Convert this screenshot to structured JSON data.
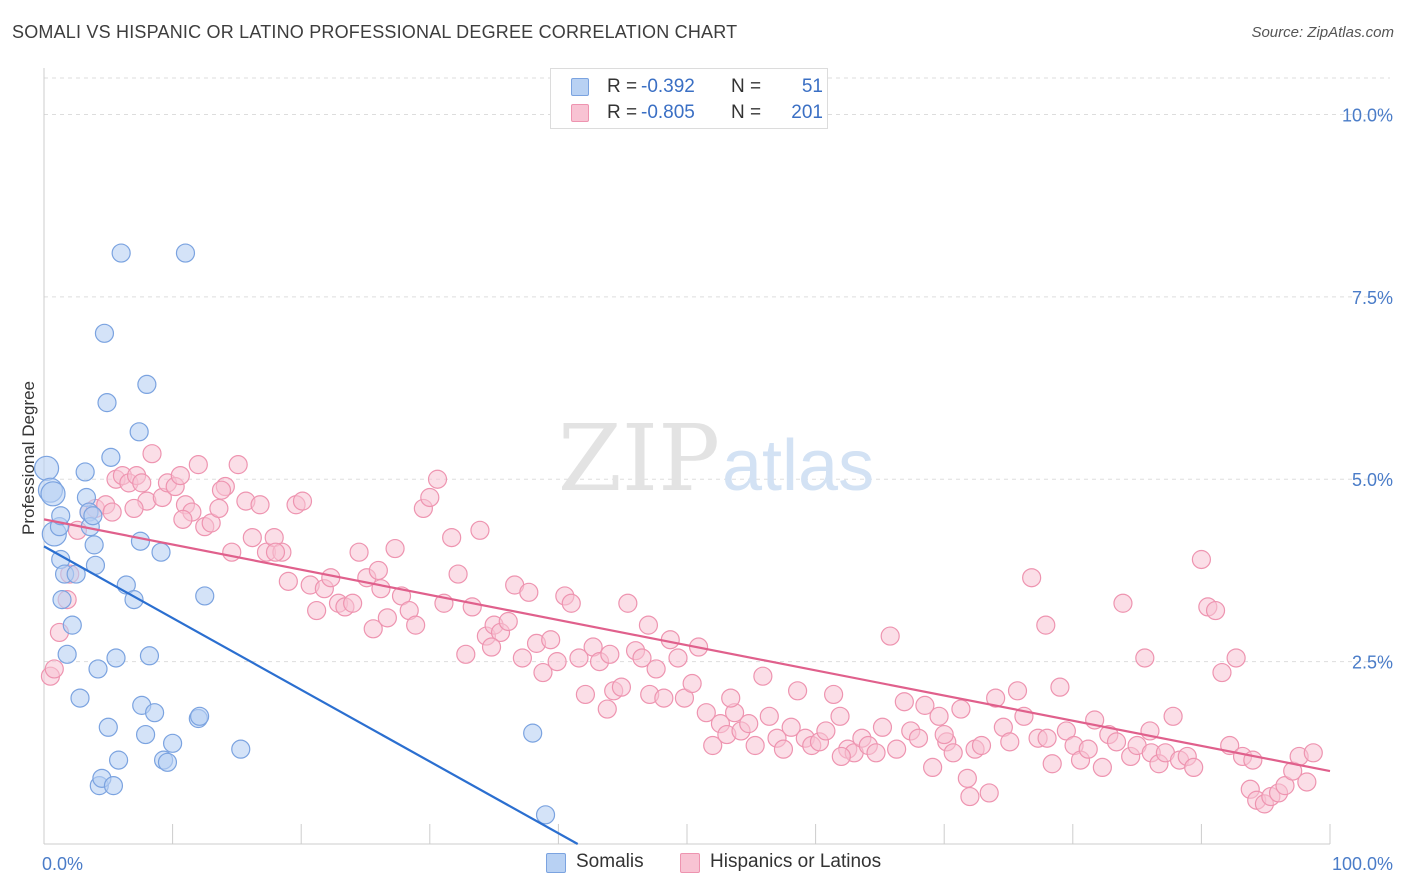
{
  "header": {
    "title": "SOMALI VS HISPANIC OR LATINO PROFESSIONAL DEGREE CORRELATION CHART",
    "source": "Source: ZipAtlas.com"
  },
  "watermark": {
    "part1": "ZIP",
    "part2": "atlas"
  },
  "legend": {
    "r_label": "R =",
    "n_label": "N =",
    "somalis": {
      "r": "-0.392",
      "n": "51"
    },
    "hispanics": {
      "r": "-0.805",
      "n": "201"
    }
  },
  "colors": {
    "somalis_fill": "#b8d1f3",
    "somalis_stroke": "#7ba3e0",
    "somalis_line": "#2b6fd0",
    "hispanics_fill": "#f8c3d3",
    "hispanics_stroke": "#ee94b0",
    "hispanics_line": "#e0608c",
    "tick_label": "#4a7cc8",
    "grid": "#dddddd"
  },
  "chart_data": {
    "type": "scatter",
    "title": "SOMALI VS HISPANIC OR LATINO PROFESSIONAL DEGREE CORRELATION CHART",
    "xlabel": "",
    "ylabel": "Professional Degree",
    "xlim": [
      0,
      100
    ],
    "ylim": [
      0,
      10.5
    ],
    "x_tick_labels": [
      "0.0%",
      "100.0%"
    ],
    "y_ticks": [
      2.5,
      5.0,
      7.5,
      10.0
    ],
    "y_tick_labels": [
      "2.5%",
      "5.0%",
      "7.5%",
      "10.0%"
    ],
    "grid": "horizontal dashed",
    "legend_position": "top-center and bottom",
    "series": [
      {
        "name": "Somalis",
        "r": -0.392,
        "n": 51,
        "trend": {
          "x": [
            0,
            41.5
          ],
          "y": [
            4.08,
            0
          ]
        },
        "points": [
          [
            0.2,
            5.15
          ],
          [
            0.5,
            4.85
          ],
          [
            0.7,
            4.8
          ],
          [
            0.8,
            4.25
          ],
          [
            1.2,
            4.35
          ],
          [
            1.3,
            4.5
          ],
          [
            1.3,
            3.9
          ],
          [
            1.4,
            3.35
          ],
          [
            1.6,
            3.7
          ],
          [
            1.8,
            2.6
          ],
          [
            2.2,
            3.0
          ],
          [
            2.5,
            3.7
          ],
          [
            2.8,
            2.0
          ],
          [
            3.2,
            5.1
          ],
          [
            3.3,
            4.75
          ],
          [
            3.5,
            4.55
          ],
          [
            3.6,
            4.35
          ],
          [
            3.8,
            4.5
          ],
          [
            3.9,
            4.1
          ],
          [
            4.0,
            3.82
          ],
          [
            4.2,
            2.4
          ],
          [
            4.3,
            0.8
          ],
          [
            4.5,
            0.9
          ],
          [
            4.7,
            7.0
          ],
          [
            4.9,
            6.05
          ],
          [
            5.0,
            1.6
          ],
          [
            5.2,
            5.3
          ],
          [
            5.4,
            0.8
          ],
          [
            5.6,
            2.55
          ],
          [
            5.8,
            1.15
          ],
          [
            6.4,
            3.55
          ],
          [
            7.0,
            3.35
          ],
          [
            7.4,
            5.65
          ],
          [
            7.5,
            4.15
          ],
          [
            7.6,
            1.9
          ],
          [
            7.9,
            1.5
          ],
          [
            8.0,
            6.3
          ],
          [
            8.2,
            2.58
          ],
          [
            8.6,
            1.8
          ],
          [
            9.1,
            4.0
          ],
          [
            9.3,
            1.15
          ],
          [
            9.6,
            1.12
          ],
          [
            10.0,
            1.38
          ],
          [
            12.0,
            1.72
          ],
          [
            12.1,
            1.75
          ],
          [
            12.5,
            3.4
          ],
          [
            15.3,
            1.3
          ],
          [
            38.0,
            1.52
          ],
          [
            6.0,
            8.1
          ],
          [
            11.0,
            8.1
          ],
          [
            39.0,
            0.4
          ]
        ]
      },
      {
        "name": "Hispanics or Latinos",
        "r": -0.805,
        "n": 201,
        "trend": {
          "x": [
            0,
            100
          ],
          "y": [
            4.45,
            1.0
          ]
        },
        "points": [
          [
            0.5,
            2.3
          ],
          [
            0.8,
            2.4
          ],
          [
            1.2,
            2.9
          ],
          [
            1.8,
            3.35
          ],
          [
            2.0,
            3.7
          ],
          [
            2.6,
            4.3
          ],
          [
            3.5,
            4.55
          ],
          [
            4.0,
            4.6
          ],
          [
            4.8,
            4.65
          ],
          [
            5.3,
            4.55
          ],
          [
            5.6,
            5.0
          ],
          [
            6.1,
            5.05
          ],
          [
            6.6,
            4.95
          ],
          [
            7.2,
            5.05
          ],
          [
            7.6,
            4.95
          ],
          [
            8.0,
            4.7
          ],
          [
            8.4,
            5.35
          ],
          [
            9.2,
            4.75
          ],
          [
            9.6,
            4.95
          ],
          [
            10.2,
            4.9
          ],
          [
            10.6,
            5.05
          ],
          [
            11.0,
            4.65
          ],
          [
            11.5,
            4.55
          ],
          [
            12.0,
            5.2
          ],
          [
            12.5,
            4.35
          ],
          [
            13.0,
            4.4
          ],
          [
            13.6,
            4.6
          ],
          [
            14.1,
            4.9
          ],
          [
            14.6,
            4.0
          ],
          [
            15.1,
            5.2
          ],
          [
            15.7,
            4.7
          ],
          [
            16.2,
            4.2
          ],
          [
            16.8,
            4.65
          ],
          [
            17.3,
            4.0
          ],
          [
            17.9,
            4.2
          ],
          [
            18.5,
            4.0
          ],
          [
            19.0,
            3.6
          ],
          [
            19.6,
            4.65
          ],
          [
            20.1,
            4.7
          ],
          [
            20.7,
            3.55
          ],
          [
            21.2,
            3.2
          ],
          [
            21.8,
            3.5
          ],
          [
            22.3,
            3.65
          ],
          [
            22.9,
            3.3
          ],
          [
            23.4,
            3.25
          ],
          [
            24.0,
            3.3
          ],
          [
            24.5,
            4.0
          ],
          [
            25.1,
            3.65
          ],
          [
            25.6,
            2.95
          ],
          [
            26.2,
            3.5
          ],
          [
            26.7,
            3.1
          ],
          [
            27.3,
            4.05
          ],
          [
            27.8,
            3.4
          ],
          [
            28.4,
            3.2
          ],
          [
            28.9,
            3.0
          ],
          [
            29.5,
            4.6
          ],
          [
            30.0,
            4.75
          ],
          [
            30.6,
            5.0
          ],
          [
            31.1,
            3.3
          ],
          [
            31.7,
            4.2
          ],
          [
            32.2,
            3.7
          ],
          [
            32.8,
            2.6
          ],
          [
            33.3,
            3.25
          ],
          [
            33.9,
            4.3
          ],
          [
            34.4,
            2.85
          ],
          [
            35.0,
            3.0
          ],
          [
            35.5,
            2.9
          ],
          [
            36.1,
            3.05
          ],
          [
            36.6,
            3.55
          ],
          [
            37.2,
            2.55
          ],
          [
            37.7,
            3.45
          ],
          [
            38.3,
            2.75
          ],
          [
            38.8,
            2.35
          ],
          [
            39.4,
            2.8
          ],
          [
            39.9,
            2.5
          ],
          [
            40.5,
            3.4
          ],
          [
            41.0,
            3.3
          ],
          [
            41.6,
            2.55
          ],
          [
            42.1,
            2.05
          ],
          [
            42.7,
            2.7
          ],
          [
            43.2,
            2.5
          ],
          [
            43.8,
            1.85
          ],
          [
            44.3,
            2.1
          ],
          [
            44.9,
            2.15
          ],
          [
            45.4,
            3.3
          ],
          [
            46.0,
            2.65
          ],
          [
            46.5,
            2.55
          ],
          [
            47.1,
            2.05
          ],
          [
            47.6,
            2.4
          ],
          [
            48.2,
            2.0
          ],
          [
            48.7,
            2.8
          ],
          [
            49.3,
            2.55
          ],
          [
            49.8,
            2.0
          ],
          [
            50.4,
            2.2
          ],
          [
            50.9,
            2.7
          ],
          [
            51.5,
            1.8
          ],
          [
            52.0,
            1.35
          ],
          [
            52.6,
            1.65
          ],
          [
            53.1,
            1.5
          ],
          [
            53.7,
            1.8
          ],
          [
            54.2,
            1.55
          ],
          [
            54.8,
            1.65
          ],
          [
            55.3,
            1.35
          ],
          [
            55.9,
            2.3
          ],
          [
            56.4,
            1.75
          ],
          [
            57.0,
            1.45
          ],
          [
            57.5,
            1.3
          ],
          [
            58.1,
            1.6
          ],
          [
            58.6,
            2.1
          ],
          [
            59.2,
            1.45
          ],
          [
            59.7,
            1.35
          ],
          [
            60.3,
            1.4
          ],
          [
            60.8,
            1.55
          ],
          [
            61.4,
            2.05
          ],
          [
            61.9,
            1.75
          ],
          [
            62.5,
            1.3
          ],
          [
            63.0,
            1.25
          ],
          [
            63.6,
            1.45
          ],
          [
            64.1,
            1.35
          ],
          [
            64.7,
            1.25
          ],
          [
            65.2,
            1.6
          ],
          [
            65.8,
            2.85
          ],
          [
            66.3,
            1.3
          ],
          [
            66.9,
            1.95
          ],
          [
            67.4,
            1.55
          ],
          [
            68.0,
            1.45
          ],
          [
            68.5,
            1.9
          ],
          [
            69.1,
            1.05
          ],
          [
            69.6,
            1.75
          ],
          [
            70.2,
            1.4
          ],
          [
            70.7,
            1.25
          ],
          [
            71.3,
            1.85
          ],
          [
            71.8,
            0.9
          ],
          [
            72.4,
            1.3
          ],
          [
            72.9,
            1.35
          ],
          [
            73.5,
            0.7
          ],
          [
            74.0,
            2.0
          ],
          [
            74.6,
            1.6
          ],
          [
            75.1,
            1.4
          ],
          [
            75.7,
            2.1
          ],
          [
            76.2,
            1.75
          ],
          [
            76.8,
            3.65
          ],
          [
            77.3,
            1.45
          ],
          [
            77.9,
            3.0
          ],
          [
            78.4,
            1.1
          ],
          [
            79.0,
            2.15
          ],
          [
            79.5,
            1.55
          ],
          [
            80.1,
            1.35
          ],
          [
            80.6,
            1.15
          ],
          [
            81.2,
            1.3
          ],
          [
            81.7,
            1.7
          ],
          [
            82.3,
            1.05
          ],
          [
            82.8,
            1.5
          ],
          [
            83.4,
            1.4
          ],
          [
            83.9,
            3.3
          ],
          [
            84.5,
            1.2
          ],
          [
            85.0,
            1.35
          ],
          [
            85.6,
            2.55
          ],
          [
            86.1,
            1.25
          ],
          [
            86.7,
            1.1
          ],
          [
            87.2,
            1.25
          ],
          [
            87.8,
            1.75
          ],
          [
            88.3,
            1.15
          ],
          [
            88.9,
            1.2
          ],
          [
            89.4,
            1.05
          ],
          [
            90.0,
            3.9
          ],
          [
            90.5,
            3.25
          ],
          [
            91.1,
            3.2
          ],
          [
            91.6,
            2.35
          ],
          [
            92.2,
            1.35
          ],
          [
            92.7,
            2.55
          ],
          [
            93.2,
            1.2
          ],
          [
            93.8,
            0.75
          ],
          [
            94.3,
            0.6
          ],
          [
            94.9,
            0.55
          ],
          [
            95.4,
            0.65
          ],
          [
            96.0,
            0.7
          ],
          [
            96.5,
            0.8
          ],
          [
            97.1,
            1.0
          ],
          [
            97.6,
            1.2
          ],
          [
            98.2,
            0.85
          ],
          [
            98.7,
            1.25
          ],
          [
            10.8,
            4.45
          ],
          [
            18.0,
            4.0
          ],
          [
            26.0,
            3.75
          ],
          [
            34.8,
            2.7
          ],
          [
            44.0,
            2.6
          ],
          [
            53.4,
            2.0
          ],
          [
            62.0,
            1.2
          ],
          [
            70.0,
            1.5
          ],
          [
            78.0,
            1.45
          ],
          [
            86.0,
            1.55
          ],
          [
            94.0,
            1.15
          ],
          [
            7.0,
            4.6
          ],
          [
            13.8,
            4.85
          ],
          [
            47.0,
            3.0
          ],
          [
            72.0,
            0.65
          ]
        ]
      }
    ]
  }
}
